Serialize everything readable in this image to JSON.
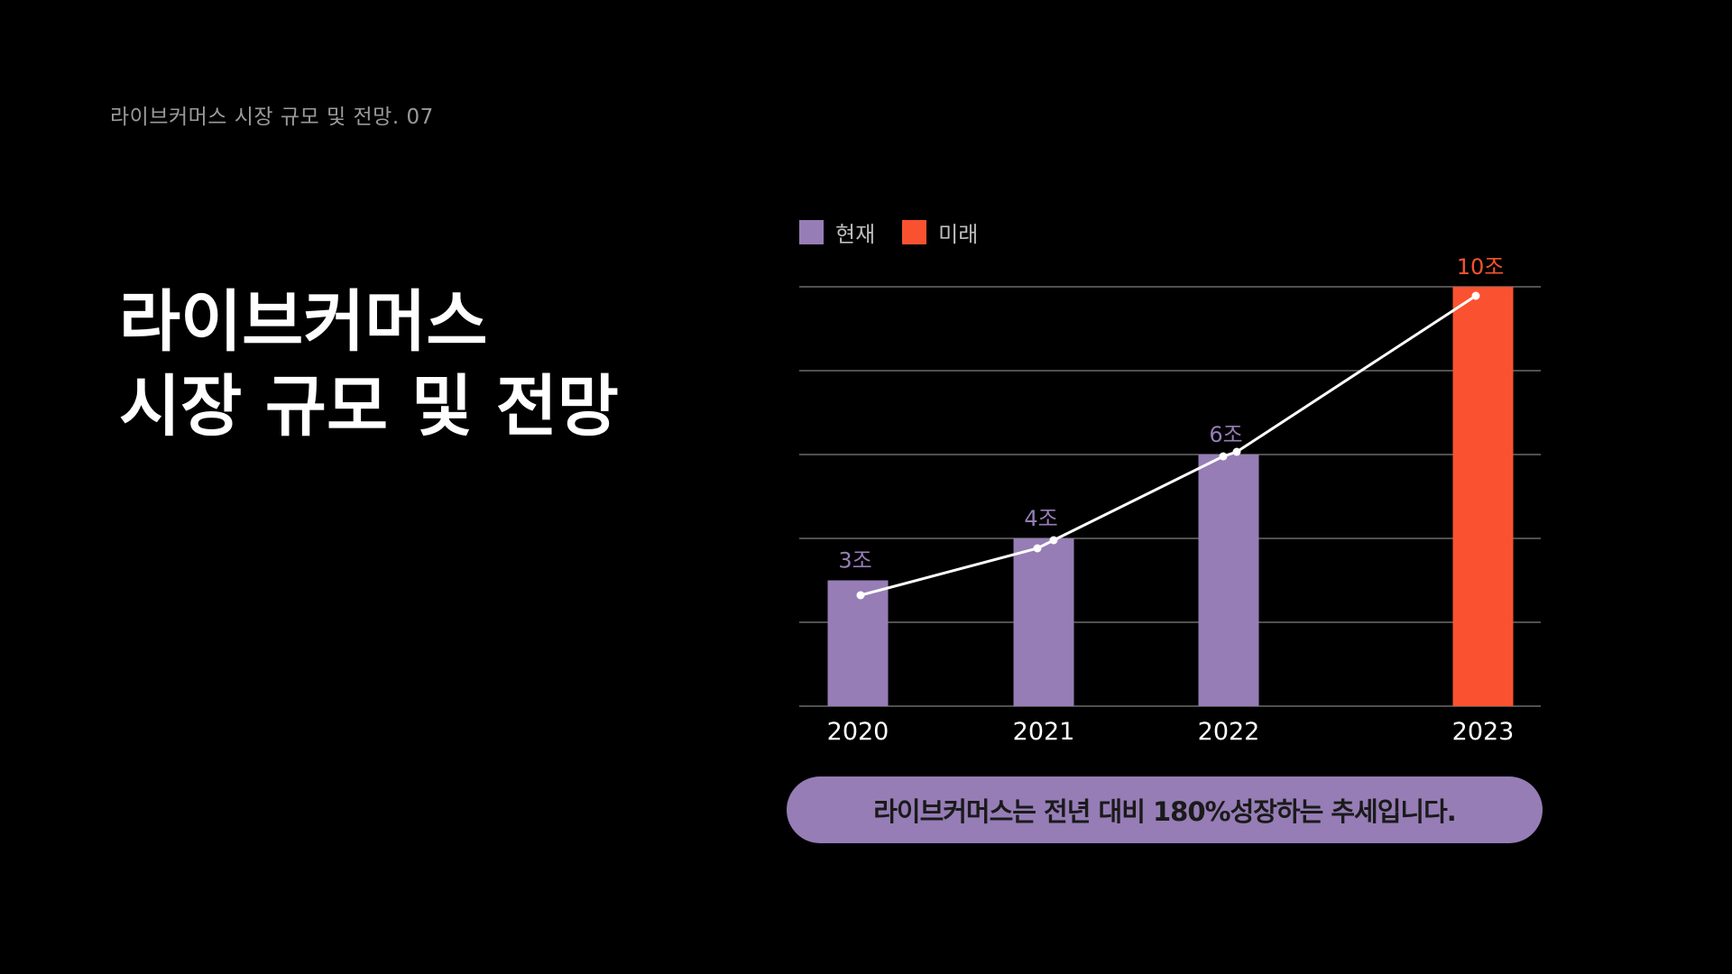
{
  "header": {
    "page_label": "라이브커머스 시장 규모 및 전망. 07"
  },
  "title": {
    "line1": "라이브커머스",
    "line2": "시장 규모 및 전망"
  },
  "colors": {
    "current": "#967db6",
    "future": "#fa5230",
    "grid": "#6a6a6a",
    "trend_line": "#ffffff",
    "pill": "#967db6"
  },
  "chart_data": {
    "type": "bar",
    "categories": [
      "2020",
      "2021",
      "2022",
      "2023"
    ],
    "values": [
      3,
      4,
      6,
      10
    ],
    "value_labels": [
      "3조",
      "4조",
      "6조",
      "10조"
    ],
    "series_type": [
      "current",
      "current",
      "current",
      "future"
    ],
    "legend": [
      {
        "key": "current",
        "label": "현재"
      },
      {
        "key": "future",
        "label": "미래"
      }
    ],
    "legend_position": "top-left",
    "ylim": [
      0,
      10
    ],
    "gridlines": [
      0,
      2,
      4,
      6,
      8,
      10
    ],
    "grid": true,
    "trend_line": true,
    "title": "",
    "xlabel": "",
    "ylabel": ""
  },
  "summary": {
    "text": "라이브커머스는 전년 대비 180%성장하는 추세입니다."
  }
}
